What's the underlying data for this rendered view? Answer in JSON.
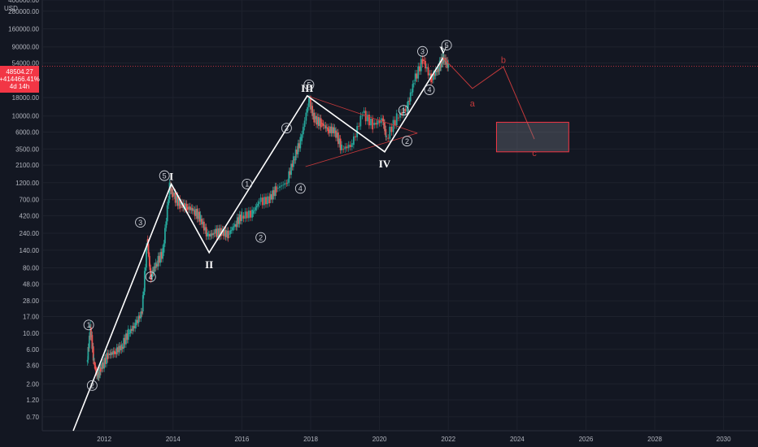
{
  "chart_data": {
    "type": "line",
    "y_scale": "log",
    "unit": "USD",
    "y_ticks": [
      "400000.00",
      "280000.00",
      "160000.00",
      "90000.00",
      "54000.00",
      "18000.00",
      "10000.00",
      "6000.00",
      "3500.00",
      "2100.00",
      "1200.00",
      "700.00",
      "420.00",
      "240.00",
      "140.00",
      "80.00",
      "48.00",
      "28.00",
      "17.00",
      "10.00",
      "6.00",
      "3.60",
      "2.00",
      "1.20",
      "0.70"
    ],
    "x_ticks": [
      "2012",
      "2014",
      "2016",
      "2018",
      "2020",
      "2022",
      "2024",
      "2026",
      "2028",
      "2030"
    ],
    "ylim": [
      0.45,
      400000
    ],
    "xlim": [
      2010.2,
      2031.0
    ],
    "current_price": {
      "value": "48504.27",
      "change": "+414466.41%",
      "countdown": "4d 14h"
    },
    "price_series": [
      [
        2011.5,
        4
      ],
      [
        2011.6,
        12
      ],
      [
        2011.7,
        4
      ],
      [
        2011.8,
        2.5
      ],
      [
        2011.9,
        3.2
      ],
      [
        2012.1,
        5
      ],
      [
        2012.3,
        5.5
      ],
      [
        2012.5,
        6.5
      ],
      [
        2012.7,
        10
      ],
      [
        2012.9,
        13
      ],
      [
        2013.1,
        20
      ],
      [
        2013.25,
        200
      ],
      [
        2013.35,
        60
      ],
      [
        2013.5,
        90
      ],
      [
        2013.7,
        130
      ],
      [
        2013.9,
        1100
      ],
      [
        2014.0,
        800
      ],
      [
        2014.2,
        600
      ],
      [
        2014.4,
        550
      ],
      [
        2014.6,
        500
      ],
      [
        2014.8,
        380
      ],
      [
        2015.0,
        220
      ],
      [
        2015.2,
        240
      ],
      [
        2015.4,
        250
      ],
      [
        2015.6,
        230
      ],
      [
        2015.8,
        320
      ],
      [
        2016.0,
        420
      ],
      [
        2016.3,
        450
      ],
      [
        2016.5,
        650
      ],
      [
        2016.8,
        700
      ],
      [
        2017.0,
        1000
      ],
      [
        2017.3,
        1200
      ],
      [
        2017.5,
        2500
      ],
      [
        2017.7,
        4500
      ],
      [
        2017.95,
        17000
      ],
      [
        2018.1,
        9000
      ],
      [
        2018.3,
        8000
      ],
      [
        2018.5,
        6500
      ],
      [
        2018.7,
        6300
      ],
      [
        2018.9,
        3500
      ],
      [
        2019.2,
        4000
      ],
      [
        2019.5,
        11000
      ],
      [
        2019.8,
        7500
      ],
      [
        2020.1,
        9000
      ],
      [
        2020.2,
        5000
      ],
      [
        2020.5,
        9500
      ],
      [
        2020.8,
        13000
      ],
      [
        2021.0,
        30000
      ],
      [
        2021.25,
        60000
      ],
      [
        2021.5,
        32000
      ],
      [
        2021.7,
        45000
      ],
      [
        2021.85,
        64000
      ],
      [
        2022.0,
        48504
      ]
    ],
    "elliott_waves": {
      "major": [
        {
          "label": "I",
          "x": 2013.95,
          "y": 1150
        },
        {
          "label": "II",
          "x": 2015.05,
          "y": 130
        },
        {
          "label": "III",
          "x": 2017.9,
          "y": 19000
        },
        {
          "label": "IV",
          "x": 2020.15,
          "y": 3200
        },
        {
          "label": "V",
          "x": 2021.85,
          "y": 64000
        }
      ],
      "major_path": [
        [
          2011.1,
          0.45
        ],
        [
          2013.95,
          1150
        ],
        [
          2015.05,
          130
        ],
        [
          2017.9,
          19000
        ],
        [
          2020.15,
          3200
        ],
        [
          2021.85,
          64000
        ]
      ],
      "minor_labels": [
        {
          "label": "1",
          "x": 2011.55,
          "y": 13
        },
        {
          "label": "2",
          "x": 2011.65,
          "y": 1.9
        },
        {
          "label": "3",
          "x": 2013.05,
          "y": 340
        },
        {
          "label": "4",
          "x": 2013.35,
          "y": 60
        },
        {
          "label": "5",
          "x": 2013.75,
          "y": 1500
        },
        {
          "label": "1",
          "x": 2016.15,
          "y": 1150
        },
        {
          "label": "2",
          "x": 2016.55,
          "y": 210
        },
        {
          "label": "3",
          "x": 2017.3,
          "y": 6800
        },
        {
          "label": "4",
          "x": 2017.7,
          "y": 1000
        },
        {
          "label": "5",
          "x": 2017.95,
          "y": 27000
        },
        {
          "label": "1",
          "x": 2020.7,
          "y": 12000
        },
        {
          "label": "2",
          "x": 2020.8,
          "y": 4500
        },
        {
          "label": "3",
          "x": 2021.25,
          "y": 78000
        },
        {
          "label": "4",
          "x": 2021.45,
          "y": 23000
        },
        {
          "label": "5",
          "x": 2021.95,
          "y": 95000
        }
      ],
      "triangle": [
        [
          2017.9,
          19000
        ],
        [
          2021.1,
          5800
        ],
        [
          2017.85,
          2000
        ]
      ],
      "abc_path": [
        [
          2021.85,
          64000
        ],
        [
          2022.7,
          24000
        ],
        [
          2023.6,
          48000
        ],
        [
          2024.5,
          4800
        ]
      ],
      "abc_labels": [
        {
          "label": "a",
          "x": 2022.7,
          "y": 15000
        },
        {
          "label": "b",
          "x": 2023.6,
          "y": 60000
        },
        {
          "label": "c",
          "x": 2024.5,
          "y": 3100
        }
      ],
      "target_zone": {
        "x0": 2023.4,
        "x1": 2025.5,
        "y_low": 3200,
        "y_high": 8200
      }
    }
  }
}
